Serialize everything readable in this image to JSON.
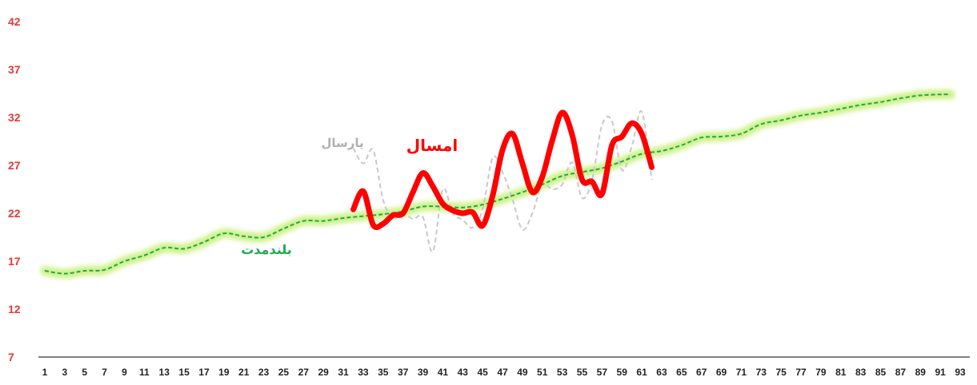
{
  "chart_data": {
    "type": "line",
    "grid": false,
    "ylim": [
      7,
      42
    ],
    "xlim": [
      1,
      93
    ],
    "yticks": [
      7,
      12,
      17,
      22,
      27,
      32,
      37,
      42
    ],
    "xticks": [
      1,
      3,
      5,
      7,
      9,
      11,
      13,
      15,
      17,
      19,
      21,
      23,
      25,
      27,
      29,
      31,
      33,
      35,
      37,
      39,
      41,
      43,
      45,
      47,
      49,
      51,
      53,
      55,
      57,
      59,
      61,
      63,
      65,
      67,
      69,
      71,
      73,
      75,
      77,
      79,
      81,
      83,
      85,
      87,
      89,
      91,
      93
    ],
    "colors": {
      "long_term": "#1fa84f",
      "long_term_glow": "#c8f07a",
      "this_year": "#ff0000",
      "last_year": "#c8c8c8",
      "axis_tick": "#e53935"
    },
    "series": [
      {
        "name": "بلندمدت",
        "key": "long_term",
        "x": [
          1,
          3,
          5,
          7,
          9,
          11,
          13,
          15,
          17,
          19,
          21,
          23,
          25,
          27,
          29,
          31,
          33,
          35,
          37,
          39,
          41,
          43,
          45,
          47,
          49,
          51,
          53,
          55,
          57,
          59,
          61,
          63,
          65,
          67,
          69,
          71,
          73,
          75,
          77,
          79,
          81,
          83,
          85,
          87,
          89,
          91,
          92
        ],
        "values": [
          16.0,
          15.7,
          16.0,
          16.1,
          17.0,
          17.6,
          18.4,
          18.3,
          19.0,
          19.9,
          19.6,
          19.5,
          20.4,
          21.2,
          21.2,
          21.5,
          21.7,
          21.9,
          22.2,
          22.7,
          22.7,
          22.6,
          22.9,
          23.5,
          24.2,
          25.0,
          25.9,
          26.3,
          26.7,
          27.4,
          28.2,
          28.5,
          29.1,
          29.9,
          30.0,
          30.3,
          31.3,
          31.7,
          32.2,
          32.5,
          32.9,
          33.3,
          33.6,
          34.0,
          34.3,
          34.4,
          34.4
        ]
      },
      {
        "name": "امسال",
        "key": "this_year",
        "x": [
          32,
          33,
          34,
          35,
          36,
          37,
          38,
          39,
          40,
          41,
          42,
          43,
          44,
          45,
          46,
          47,
          48,
          49,
          50,
          51,
          52,
          53,
          54,
          55,
          56,
          57,
          58,
          59,
          60,
          61,
          62
        ],
        "values": [
          22.4,
          24.3,
          20.8,
          20.9,
          21.8,
          22.0,
          24.2,
          26.2,
          24.8,
          23.0,
          22.3,
          22.0,
          22.1,
          20.7,
          23.8,
          28.6,
          30.3,
          27.2,
          24.2,
          25.8,
          29.6,
          32.5,
          30.2,
          25.5,
          25.3,
          24.0,
          29.1,
          30.0,
          31.4,
          30.3,
          26.8
        ]
      },
      {
        "name": "پارسال",
        "key": "last_year",
        "x": [
          32,
          33,
          34,
          35,
          36,
          37,
          38,
          39,
          40,
          41,
          42,
          43,
          44,
          45,
          46,
          47,
          48,
          49,
          50,
          51,
          52,
          53,
          54,
          55,
          56,
          57,
          58,
          59,
          60,
          61,
          62
        ],
        "values": [
          28.8,
          27.2,
          28.6,
          23.4,
          21.5,
          22.0,
          21.4,
          21.6,
          18.0,
          24.5,
          22.0,
          21.3,
          20.5,
          22.4,
          27.8,
          26.3,
          23.5,
          20.3,
          22.0,
          25.0,
          24.5,
          25.0,
          27.3,
          23.6,
          25.5,
          31.2,
          31.6,
          26.5,
          29.0,
          32.6,
          25.5
        ]
      }
    ]
  }
}
